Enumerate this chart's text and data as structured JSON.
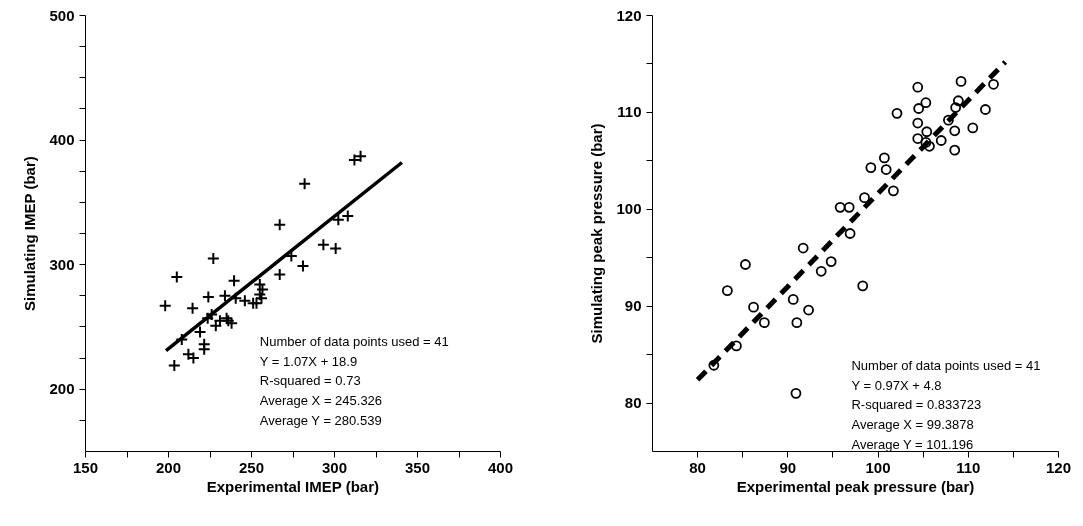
{
  "chart_data": [
    {
      "type": "scatter",
      "xlabel": "Experimental IMEP (bar)",
      "ylabel": "Simulating IMEP (bar)",
      "xlim": [
        150,
        400
      ],
      "ylim": [
        150,
        500
      ],
      "xticks": [
        150,
        {
          "value": 175,
          "label": null
        },
        200,
        {
          "value": 225,
          "label": null
        },
        250,
        {
          "value": 275,
          "label": null
        },
        300,
        {
          "value": 325,
          "label": null
        },
        350,
        {
          "value": 375,
          "label": null
        },
        400
      ],
      "grid": false,
      "yticks": [
        {
          "value": 175,
          "label": null
        },
        200,
        {
          "value": 225,
          "label": null
        },
        {
          "value": 250,
          "label": null
        },
        {
          "value": 275,
          "label": null
        },
        300,
        {
          "value": 325,
          "label": null
        },
        {
          "value": 350,
          "label": null
        },
        {
          "value": 375,
          "label": null
        },
        400,
        {
          "value": 425,
          "label": null
        },
        {
          "value": 450,
          "label": null
        },
        {
          "value": 475,
          "label": null
        },
        500
      ],
      "annotations": [
        "Number of data points used = 41",
        "Y = 1.07X + 18.9",
        "R-squared = 0.73",
        "Average X = 245.326",
        "Average Y = 280.539"
      ],
      "series": [
        {
          "marker": "cross",
          "color": "#000000",
          "x": [
            198,
            203.5,
            205,
            208,
            212,
            215,
            214.5,
            219,
            221.5,
            221.5,
            224,
            226,
            223.6,
            227,
            228.5,
            231,
            234,
            235,
            236,
            238,
            239.5,
            240.5,
            246,
            251,
            253,
            255,
            255,
            256,
            256.6,
            267,
            267,
            274,
            281,
            282,
            293.3,
            300.7,
            302.3,
            308,
            312,
            315.7
          ],
          "values": [
            267,
            219,
            290,
            240,
            228,
            225,
            265,
            246,
            232,
            236,
            274,
            260,
            257,
            305,
            251,
            255,
            275,
            257,
            255,
            253,
            287,
            273,
            271,
            269,
            269,
            284,
            276,
            273,
            280,
            292,
            332,
            307,
            299,
            365,
            316,
            313,
            336,
            339,
            384,
            387
          ]
        },
        {
          "type": "line",
          "line_style": "solid",
          "color": "#000000",
          "x": [
            198.5,
            340.6
          ],
          "values": [
            231,
            382
          ]
        }
      ]
    },
    {
      "type": "scatter",
      "xlabel": "Experimental peak pressure (bar)",
      "ylabel": "Simulating peak pressure (bar)",
      "xlim": [
        75,
        120
      ],
      "ylim": [
        75,
        120
      ],
      "xticks": [
        80,
        {
          "value": 85,
          "label": null
        },
        90,
        {
          "value": 95,
          "label": null
        },
        100,
        {
          "value": 105,
          "label": null
        },
        110,
        {
          "value": 115,
          "label": null
        },
        120
      ],
      "yticks": [
        80,
        {
          "value": 85,
          "label": null
        },
        90,
        {
          "value": 95,
          "label": null
        },
        100,
        {
          "value": 105,
          "label": null
        },
        110,
        {
          "value": 115,
          "label": null
        },
        120
      ],
      "grid": false,
      "annotations": [
        "Number of data points used = 41",
        "Y =  0.97X + 4.8",
        "R-squared = 0.833723",
        "Average X = 99.3878",
        "Average Y = 101.196"
      ],
      "series": [
        {
          "marker": "circle",
          "color": "#000000",
          "x": [
            81.8,
            83.3,
            84.3,
            85.3,
            86.2,
            87.4,
            90.6,
            90.9,
            91.0,
            91.7,
            92.3,
            93.7,
            94.8,
            95.8,
            96.8,
            96.9,
            98.3,
            98.5,
            99.2,
            100.7,
            100.9,
            101.7,
            102.1,
            104.4,
            104.4,
            104.4,
            104.5,
            105.3,
            105.4,
            105.3,
            105.7,
            107.0,
            107.8,
            108.5,
            108.5,
            108.6,
            108.9,
            109.2,
            110.5,
            111.9,
            112.8
          ],
          "values": [
            83.9,
            91.6,
            85.9,
            94.3,
            89.9,
            88.3,
            90.7,
            81.0,
            88.3,
            96.0,
            89.6,
            93.6,
            94.6,
            100.2,
            100.2,
            97.5,
            92.1,
            101.2,
            104.3,
            105.3,
            104.1,
            101.9,
            109.9,
            108.9,
            107.3,
            112.6,
            110.4,
            111.0,
            108.0,
            106.9,
            106.5,
            107.1,
            109.2,
            108.1,
            106.1,
            110.5,
            111.2,
            113.2,
            108.4,
            110.3,
            112.9
          ]
        },
        {
          "type": "line",
          "line_style": "dashed",
          "color": "#000000",
          "x": [
            80,
            114.1
          ],
          "values": [
            82.4,
            115.2
          ]
        }
      ]
    }
  ]
}
